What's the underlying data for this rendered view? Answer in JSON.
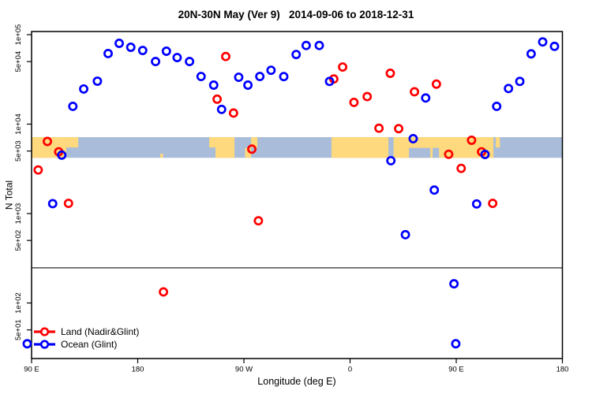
{
  "title": "20N-30N May (Ver 9)   2014-09-06 to 2018-12-31",
  "colors": {
    "land_series": "#FF0000",
    "ocean_series": "#0000FF",
    "map_land": "#FED97D",
    "map_ocean": "#A9BDDA",
    "axis": "#000000",
    "separator_line": "#4d4d4d"
  },
  "legend": {
    "items": [
      {
        "label": "Land (Nadir&Glint)",
        "color": "#FF0000"
      },
      {
        "label": "Ocean (Glint)",
        "color": "#0000FF"
      }
    ]
  },
  "chart_data": {
    "type": "scatter",
    "title": "20N-30N May (Ver 9)   2014-09-06 to 2018-12-31",
    "xlabel": "Longitude (deg E)",
    "ylabel": "N Total",
    "x_axis": {
      "note": "longitude increases eastward from 90E and wraps 450 degrees: 90E -> 180 -> 90W -> 0 -> 90E -> 180",
      "range_deg": [
        90,
        540
      ],
      "ticks": [
        {
          "deg": 90,
          "label": "90 E"
        },
        {
          "deg": 180,
          "label": "180"
        },
        {
          "deg": 270,
          "label": "90 W"
        },
        {
          "deg": 360,
          "label": "0"
        },
        {
          "deg": 450,
          "label": "90 E"
        },
        {
          "deg": 540,
          "label": "180"
        }
      ]
    },
    "y_axis": {
      "scale": "log10",
      "range": [
        24,
        109000
      ],
      "ticks": [
        {
          "value": 100000,
          "label": "1e+05"
        },
        {
          "value": 50000,
          "label": "5e+04"
        },
        {
          "value": 10000,
          "label": "1e+04"
        },
        {
          "value": 5000,
          "label": "5e+03"
        },
        {
          "value": 1000,
          "label": "1e+03"
        },
        {
          "value": 500,
          "label": "5e+02"
        },
        {
          "value": 100,
          "label": "1e+02"
        },
        {
          "value": 50,
          "label": "5e+01"
        }
      ]
    },
    "separator_line_n": 247,
    "map_band": {
      "n_top": 7150,
      "n_bottom": 4200,
      "land_segments": [
        {
          "from": 90.0,
          "to": 119.4,
          "part": "full"
        },
        {
          "from": 119.4,
          "to": 129.5,
          "part": "top"
        },
        {
          "from": 199.1,
          "to": 201.4,
          "part": "speck-bottom"
        },
        {
          "from": 240.6,
          "to": 245.9,
          "part": "top"
        },
        {
          "from": 245.9,
          "to": 262.0,
          "part": "full"
        },
        {
          "from": 271.0,
          "to": 276.1,
          "part": "bottom"
        },
        {
          "from": 276.1,
          "to": 281.4,
          "part": "top"
        },
        {
          "from": 344.3,
          "to": 481.5,
          "part": "full"
        },
        {
          "from": 483.5,
          "to": 487.0,
          "part": "top"
        }
      ],
      "ocean_notches": [
        {
          "from": 392.5,
          "to": 396.9,
          "part": "full"
        },
        {
          "from": 409.9,
          "to": 428.0,
          "part": "bottom"
        },
        {
          "from": 430.0,
          "to": 435.4,
          "part": "bottom"
        }
      ]
    },
    "series": [
      {
        "name": "Land (Nadir&Glint)",
        "color": "#FF0000",
        "points": [
          {
            "lon": 95.6,
            "n": 3070
          },
          {
            "lon": 103.4,
            "n": 6400
          },
          {
            "lon": 113.0,
            "n": 4900
          },
          {
            "lon": 121.3,
            "n": 1300
          },
          {
            "lon": 201.8,
            "n": 133
          },
          {
            "lon": 247.3,
            "n": 19000
          },
          {
            "lon": 254.6,
            "n": 57000
          },
          {
            "lon": 261.2,
            "n": 13300
          },
          {
            "lon": 276.7,
            "n": 5250
          },
          {
            "lon": 282.3,
            "n": 830
          },
          {
            "lon": 346.2,
            "n": 32000
          },
          {
            "lon": 353.7,
            "n": 43500
          },
          {
            "lon": 363.3,
            "n": 17500
          },
          {
            "lon": 374.5,
            "n": 20300
          },
          {
            "lon": 384.5,
            "n": 9000
          },
          {
            "lon": 394.1,
            "n": 37000
          },
          {
            "lon": 401.2,
            "n": 8900
          },
          {
            "lon": 414.6,
            "n": 23000
          },
          {
            "lon": 433.2,
            "n": 28000
          },
          {
            "lon": 443.6,
            "n": 4600
          },
          {
            "lon": 454.2,
            "n": 3200
          },
          {
            "lon": 463.0,
            "n": 6600
          },
          {
            "lon": 471.5,
            "n": 4900
          },
          {
            "lon": 480.9,
            "n": 1300
          }
        ]
      },
      {
        "name": "Ocean (Glint)",
        "color": "#0000FF",
        "points": [
          {
            "lon": 86.3,
            "n": 35
          },
          {
            "lon": 107.9,
            "n": 1290
          },
          {
            "lon": 115.6,
            "n": 4500
          },
          {
            "lon": 125.0,
            "n": 15800
          },
          {
            "lon": 134.2,
            "n": 24700
          },
          {
            "lon": 145.8,
            "n": 30200
          },
          {
            "lon": 154.9,
            "n": 61500
          },
          {
            "lon": 164.3,
            "n": 80000
          },
          {
            "lon": 174.1,
            "n": 72300
          },
          {
            "lon": 184.2,
            "n": 66600
          },
          {
            "lon": 195.1,
            "n": 50100
          },
          {
            "lon": 204.3,
            "n": 65300
          },
          {
            "lon": 213.4,
            "n": 55500
          },
          {
            "lon": 223.9,
            "n": 50100
          },
          {
            "lon": 233.7,
            "n": 34100
          },
          {
            "lon": 244.4,
            "n": 27300
          },
          {
            "lon": 251.1,
            "n": 14600
          },
          {
            "lon": 265.6,
            "n": 33400
          },
          {
            "lon": 273.4,
            "n": 27300
          },
          {
            "lon": 283.5,
            "n": 34100
          },
          {
            "lon": 293.0,
            "n": 40000
          },
          {
            "lon": 303.8,
            "n": 34000
          },
          {
            "lon": 314.3,
            "n": 60000
          },
          {
            "lon": 322.8,
            "n": 75700
          },
          {
            "lon": 333.9,
            "n": 75700
          },
          {
            "lon": 342.6,
            "n": 30000
          },
          {
            "lon": 394.6,
            "n": 3900
          },
          {
            "lon": 406.9,
            "n": 580
          },
          {
            "lon": 413.5,
            "n": 6870
          },
          {
            "lon": 424.1,
            "n": 19600
          },
          {
            "lon": 431.4,
            "n": 1830
          },
          {
            "lon": 448.1,
            "n": 164
          },
          {
            "lon": 449.6,
            "n": 35
          },
          {
            "lon": 467.3,
            "n": 1280
          },
          {
            "lon": 474.4,
            "n": 4580
          },
          {
            "lon": 484.3,
            "n": 15800
          },
          {
            "lon": 494.3,
            "n": 25000
          },
          {
            "lon": 503.9,
            "n": 30000
          },
          {
            "lon": 513.5,
            "n": 61000
          },
          {
            "lon": 523.3,
            "n": 83000
          },
          {
            "lon": 533.3,
            "n": 74000
          }
        ]
      }
    ]
  }
}
